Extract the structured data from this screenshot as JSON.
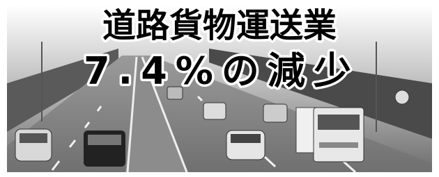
{
  "headline": {
    "title": "道路貨物運送業",
    "subtitle": "7.4%の減少"
  }
}
